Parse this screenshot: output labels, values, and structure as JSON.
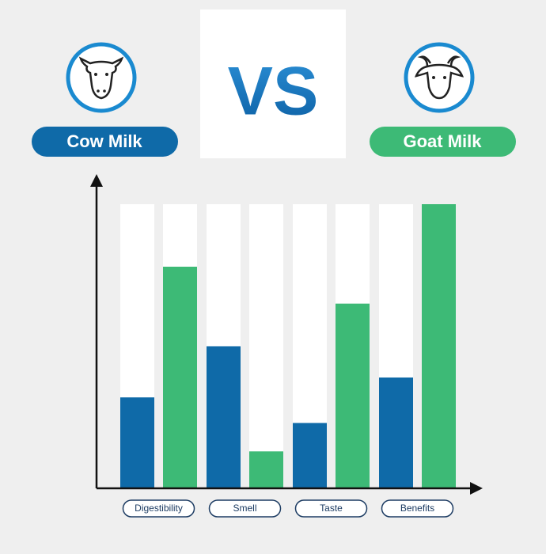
{
  "chart_data": {
    "type": "bar",
    "title": "VS",
    "categories": [
      "Digestibility",
      "Smell",
      "Taste",
      "Benefits"
    ],
    "series": [
      {
        "name": "Cow Milk",
        "color": "#0f6aa8",
        "values": [
          32,
          50,
          23,
          39
        ]
      },
      {
        "name": "Goat Milk",
        "color": "#3dba76",
        "values": [
          78,
          13,
          65,
          100
        ]
      }
    ],
    "ylim": [
      0,
      100
    ]
  }
}
